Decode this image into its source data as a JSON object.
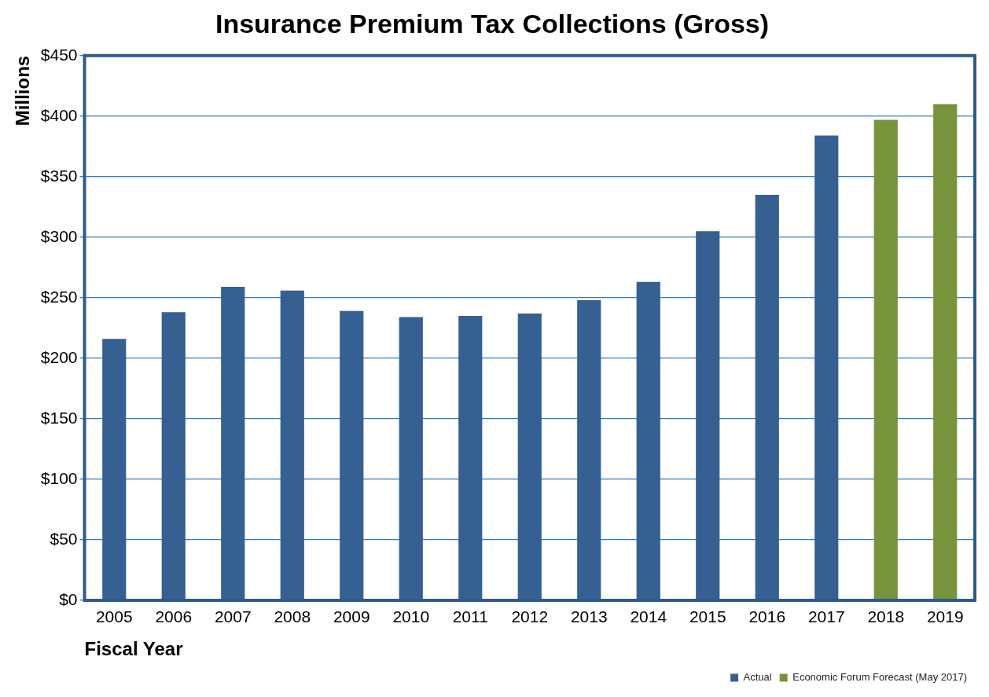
{
  "chart_data": {
    "type": "bar",
    "title": "Insurance Premium Tax Collections (Gross)",
    "xlabel": "Fiscal Year",
    "ylabel": "Millions",
    "categories": [
      "2005",
      "2006",
      "2007",
      "2008",
      "2009",
      "2010",
      "2011",
      "2012",
      "2013",
      "2014",
      "2015",
      "2016",
      "2017",
      "2018",
      "2019"
    ],
    "series": [
      {
        "name": "Actual",
        "color": "#366092",
        "values": [
          216,
          238,
          259,
          256,
          239,
          234,
          235,
          237,
          248,
          263,
          305,
          335,
          384,
          null,
          null
        ]
      },
      {
        "name": "Economic Forum Forecast (May 2017)",
        "color": "#77933c",
        "values": [
          null,
          null,
          null,
          null,
          null,
          null,
          null,
          null,
          null,
          null,
          null,
          null,
          null,
          397,
          410
        ]
      }
    ],
    "stacked": true,
    "ylim": [
      0,
      450
    ],
    "yticks": [
      {
        "value": 0,
        "label": "$0"
      },
      {
        "value": 50,
        "label": "$50"
      },
      {
        "value": 100,
        "label": "$100"
      },
      {
        "value": 150,
        "label": "$150"
      },
      {
        "value": 200,
        "label": "$200"
      },
      {
        "value": 250,
        "label": "$250"
      },
      {
        "value": 300,
        "label": "$300"
      },
      {
        "value": 350,
        "label": "$350"
      },
      {
        "value": 400,
        "label": "$400"
      },
      {
        "value": 450,
        "label": "$450"
      }
    ],
    "grid": "y",
    "legend": "bottom right"
  }
}
